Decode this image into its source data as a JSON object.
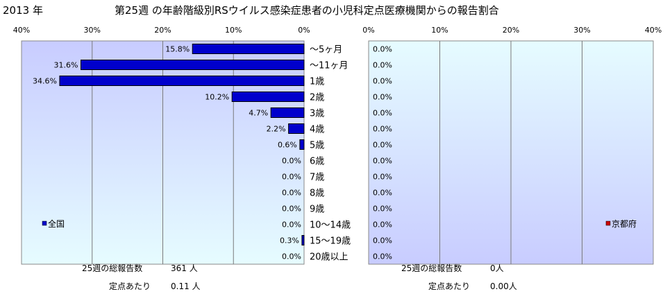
{
  "header": {
    "year": "2013 年",
    "title": "第25週 の年齢階級別RSウイルス感染症患者の小児科定点医療機関からの報告割合"
  },
  "chart_data": [
    {
      "type": "bar",
      "orientation": "horizontal",
      "direction": "right-to-left",
      "categories": [
        "～5ヶ月",
        "～11ヶ月",
        "1歳",
        "2歳",
        "3歳",
        "4歳",
        "5歳",
        "6歳",
        "7歳",
        "8歳",
        "9歳",
        "10～14歳",
        "15～19歳",
        "20歳以上"
      ],
      "values": [
        15.8,
        31.6,
        34.6,
        10.2,
        4.7,
        2.2,
        0.6,
        0.0,
        0.0,
        0.0,
        0.0,
        0.0,
        0.3,
        0.0
      ],
      "value_labels": [
        "15.8%",
        "31.6%",
        "34.6%",
        "10.2%",
        "4.7%",
        "2.2%",
        "0.6%",
        "0.0%",
        "0.0%",
        "0.0%",
        "0.0%",
        "0.0%",
        "0.3%",
        "0.0%"
      ],
      "xlim": [
        0,
        40
      ],
      "ticks": [
        "40%",
        "30%",
        "20%",
        "10%",
        "0%"
      ],
      "legend": {
        "label": "全国",
        "color": "#0000cc",
        "position": "bottom-left"
      },
      "grid": true,
      "plot_bg_top": "#c8ccff",
      "plot_bg_bottom": "#e6fcff",
      "bar_color": "#0000cc"
    },
    {
      "type": "bar",
      "orientation": "horizontal",
      "direction": "left-to-right",
      "categories": [
        "～5ヶ月",
        "～11ヶ月",
        "1歳",
        "2歳",
        "3歳",
        "4歳",
        "5歳",
        "6歳",
        "7歳",
        "8歳",
        "9歳",
        "10～14歳",
        "15～19歳",
        "20歳以上"
      ],
      "values": [
        0,
        0,
        0,
        0,
        0,
        0,
        0,
        0,
        0,
        0,
        0,
        0,
        0,
        0
      ],
      "value_labels": [
        "0.0%",
        "0.0%",
        "0.0%",
        "0.0%",
        "0.0%",
        "0.0%",
        "0.0%",
        "0.0%",
        "0.0%",
        "0.0%",
        "0.0%",
        "0.0%",
        "0.0%",
        "0.0%"
      ],
      "xlim": [
        0,
        40
      ],
      "ticks": [
        "0%",
        "10%",
        "20%",
        "30%",
        "40%"
      ],
      "legend": {
        "label": "京都府",
        "color": "#cc0000",
        "position": "bottom-right"
      },
      "grid": true,
      "plot_bg_top": "#e6fcff",
      "plot_bg_bottom": "#c8ccff",
      "bar_color": "#cc0000"
    }
  ],
  "footer": {
    "national": {
      "total_label": "25週の総報告数",
      "total_value": "361 人",
      "per_label": "定点あたり",
      "per_value": "0.11 人"
    },
    "kyoto": {
      "total_label": "25週の総報告数",
      "total_value": "0人",
      "per_label": "定点あたり",
      "per_value": "0.00人"
    }
  }
}
